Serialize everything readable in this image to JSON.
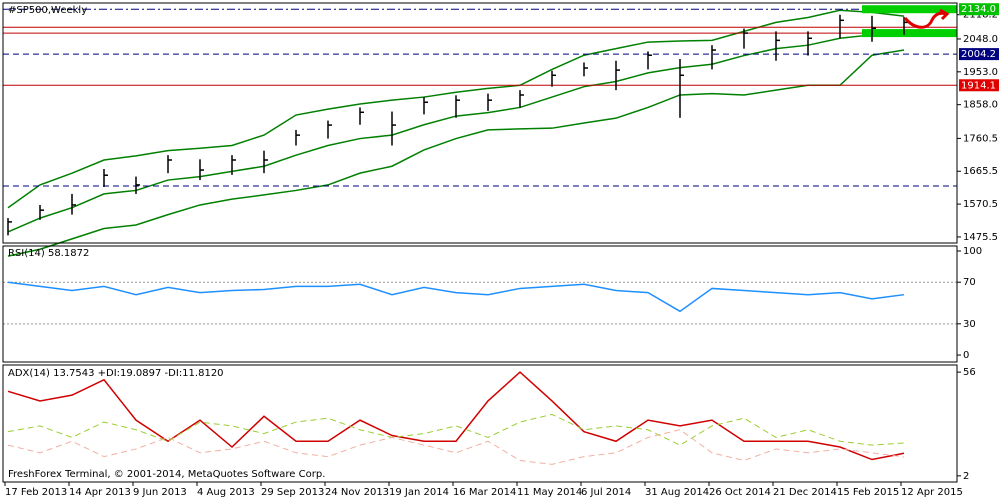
{
  "chart_data": [
    {
      "type": "ohlc",
      "title": "#SP500,Weekly",
      "categories": [
        "17 Feb 2013",
        null,
        "14 Apr 2013",
        null,
        "9 Jun 2013",
        null,
        "4 Aug 2013",
        null,
        "29 Sep 2013",
        null,
        "24 Nov 2013",
        null,
        "19 Jan 2014",
        null,
        "16 Mar 2014",
        null,
        "11 May 2014",
        null,
        "6 Jul 2014",
        null,
        "31 Aug 2014",
        null,
        "26 Oct 2014",
        null,
        "21 Dec 2014",
        null,
        "15 Feb 2015",
        null,
        "12 Apr 2015"
      ],
      "high": [
        1530,
        1568,
        1600,
        1672,
        1650,
        1712,
        1700,
        1712,
        1725,
        1785,
        1812,
        1850,
        1838,
        1880,
        1885,
        1890,
        1900,
        1956,
        1980,
        1985,
        2012,
        1990,
        2030,
        2078,
        2070,
        2070,
        2118,
        2115,
        2112
      ],
      "low": [
        1480,
        1525,
        1540,
        1620,
        1600,
        1660,
        1640,
        1655,
        1660,
        1740,
        1760,
        1800,
        1740,
        1830,
        1820,
        1840,
        1850,
        1910,
        1940,
        1900,
        1960,
        1820,
        1960,
        2020,
        1985,
        2000,
        2050,
        2040,
        2060
      ],
      "close": [
        1519,
        1553,
        1568,
        1654,
        1626,
        1698,
        1669,
        1698,
        1698,
        1770,
        1799,
        1836,
        1799,
        1865,
        1871,
        1871,
        1886,
        1943,
        1964,
        1958,
        2001,
        1943,
        2016,
        2065,
        2044,
        2050,
        2102,
        2079,
        2096
      ],
      "bands": {
        "color": "#008000",
        "upper": [
          1560,
          1626,
          1660,
          1698,
          1710,
          1725,
          1732,
          1740,
          1770,
          1828,
          1845,
          1860,
          1871,
          1880,
          1894,
          1905,
          1914,
          1960,
          2001,
          2020,
          2039,
          2042,
          2044,
          2070,
          2096,
          2110,
          2131,
          2125,
          2114
        ],
        "middle": [
          1490,
          1530,
          1560,
          1600,
          1610,
          1640,
          1650,
          1665,
          1680,
          1712,
          1740,
          1760,
          1770,
          1800,
          1825,
          1835,
          1850,
          1880,
          1910,
          1925,
          1950,
          1965,
          1975,
          2000,
          2020,
          2030,
          2050,
          2060,
          2065
        ],
        "lower": [
          1420,
          1440,
          1470,
          1500,
          1510,
          1540,
          1568,
          1585,
          1597,
          1610,
          1626,
          1660,
          1680,
          1727,
          1760,
          1785,
          1788,
          1790,
          1805,
          1819,
          1850,
          1886,
          1890,
          1886,
          1900,
          1914,
          1914,
          2001,
          2016
        ]
      },
      "bar_color": "#000000",
      "ylim": [
        1458,
        2152
      ],
      "yticks": [
        {
          "value": 2118.2,
          "label": "2118.2"
        },
        {
          "value": 2048.0,
          "label": "2048.0"
        },
        {
          "value": 1953.0,
          "label": "1953.0"
        },
        {
          "value": 1858.0,
          "label": "1858.0"
        },
        {
          "value": 1760.5,
          "label": "1760.5"
        },
        {
          "value": 1665.5,
          "label": "1665.5"
        },
        {
          "value": 1570.5,
          "label": "1570.5"
        },
        {
          "value": 1475.5,
          "label": "1475.5"
        }
      ],
      "hlines": [
        {
          "value": 2134.0,
          "label": "2134.0",
          "color": "#000080",
          "style": "dashdot",
          "label_bg": "#00c000"
        },
        {
          "value": 2082,
          "color": "#c00000",
          "style": "solid"
        },
        {
          "value": 2065,
          "color": "#c00000",
          "style": "solid"
        },
        {
          "value": 2004.2,
          "label": "2004.2",
          "color": "#000080",
          "style": "dashed",
          "label_bg": "#000080"
        },
        {
          "value": 1914.1,
          "label": "1914.1",
          "color": "#c00000",
          "style": "solid",
          "label_bg": "#e00000"
        },
        {
          "value": 1623,
          "color": "#000080",
          "style": "dashed"
        }
      ],
      "zone": {
        "levels": [
          2134,
          2065
        ],
        "color": "#00d000"
      }
    },
    {
      "type": "line",
      "title": "RSI(14) 58.1872",
      "values": [
        70,
        66,
        62,
        66,
        58,
        65,
        60,
        62,
        63,
        66,
        66,
        68,
        58,
        65,
        60,
        58,
        64,
        66,
        68,
        62,
        60,
        42,
        64,
        62,
        60,
        58,
        60,
        54,
        58
      ],
      "color": "#1e90ff",
      "ylim": [
        -6.7,
        104.8
      ],
      "yticks": [
        0,
        30,
        70,
        100
      ],
      "levels": [
        70,
        30
      ]
    },
    {
      "type": "adx",
      "title": "ADX(14) 13.7543 +DI:19.0897 -DI:11.8120",
      "series": [
        {
          "color": "#d00000",
          "style": "solid",
          "values": [
            46,
            41,
            44,
            52,
            31,
            20,
            31,
            17,
            33,
            20,
            20,
            31,
            23,
            20,
            20,
            41,
            56,
            41,
            25,
            20,
            31,
            28,
            31,
            20,
            20,
            20,
            17,
            10.5,
            13.75
          ]
        },
        {
          "color": "#9acd32",
          "style": "dashed",
          "values": [
            25,
            28,
            22,
            30,
            26,
            20,
            30,
            28,
            24,
            30,
            32,
            26,
            22,
            24,
            28,
            22,
            30,
            34,
            26,
            28,
            26,
            18,
            28,
            32,
            22,
            26,
            20,
            18,
            19.09
          ]
        },
        {
          "color": "#f0b0a0",
          "style": "dashed",
          "values": [
            18,
            14,
            20,
            12,
            16,
            22,
            14,
            16,
            20,
            14,
            12,
            18,
            22,
            18,
            14,
            20,
            10,
            8,
            12,
            14,
            22,
            26,
            14,
            10,
            16,
            14,
            16,
            14,
            11.81
          ]
        }
      ],
      "ylim": [
        -1.2,
        59.7
      ],
      "yticks": [
        56,
        2
      ]
    }
  ],
  "footer": "FreshForex Terminal, © 2001-2014, MetaQuotes Software Corp."
}
